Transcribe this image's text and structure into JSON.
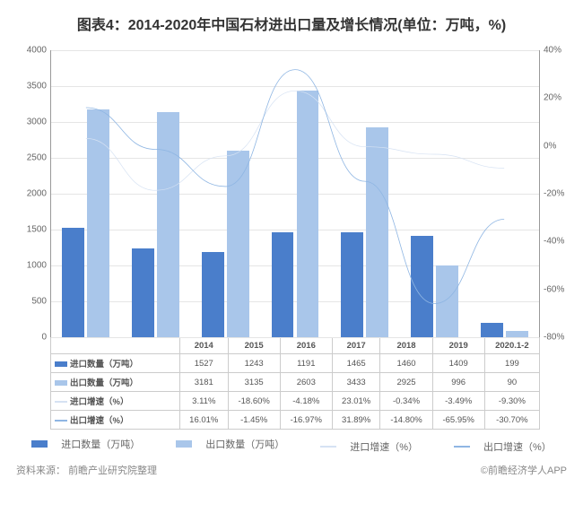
{
  "title": "图表4：2014-2020年中国石材进出口量及增长情况(单位：万吨，%)",
  "source_label": "资料来源：",
  "source_value": "前瞻产业研究院整理",
  "watermark": "©前瞻经济学人APP",
  "categories": [
    "2014",
    "2015",
    "2016",
    "2017",
    "2018",
    "2019",
    "2020.1-2"
  ],
  "series": {
    "import_qty": {
      "label": "进口数量（万吨）",
      "color": "#4a7ecb",
      "type": "bar",
      "values": [
        1527,
        1243,
        1191,
        1465,
        1460,
        1409,
        199
      ]
    },
    "export_qty": {
      "label": "出口数量（万吨）",
      "color": "#a9c6ea",
      "type": "bar",
      "values": [
        3181,
        3135,
        2603,
        3433,
        2925,
        996,
        90
      ]
    },
    "import_rate": {
      "label": "进口增速（%）",
      "color": "#d6e2f3",
      "type": "line",
      "values": [
        3.11,
        -18.6,
        -4.18,
        23.01,
        -0.34,
        -3.49,
        -9.3
      ],
      "display": [
        "3.11%",
        "-18.60%",
        "-4.18%",
        "23.01%",
        "-0.34%",
        "-3.49%",
        "-9.30%"
      ]
    },
    "export_rate": {
      "label": "出口增速（%）",
      "color": "#8fb6e3",
      "type": "line",
      "values": [
        16.01,
        -1.45,
        -16.97,
        31.89,
        -14.8,
        -65.95,
        -30.7
      ],
      "display": [
        "16.01%",
        "-1.45%",
        "-16.97%",
        "31.89%",
        "-14.80%",
        "-65.95%",
        "-30.70%"
      ]
    }
  },
  "y_left": {
    "min": 0,
    "max": 4000,
    "step": 500
  },
  "y_right": {
    "min": -80,
    "max": 40,
    "step": 20
  },
  "colors": {
    "grid": "#e5e5e5",
    "axis": "#999999",
    "text": "#666666",
    "bg": "#ffffff"
  },
  "fonts": {
    "title_size": 14,
    "axis_size": 10,
    "table_size": 9.5,
    "legend_size": 11
  }
}
